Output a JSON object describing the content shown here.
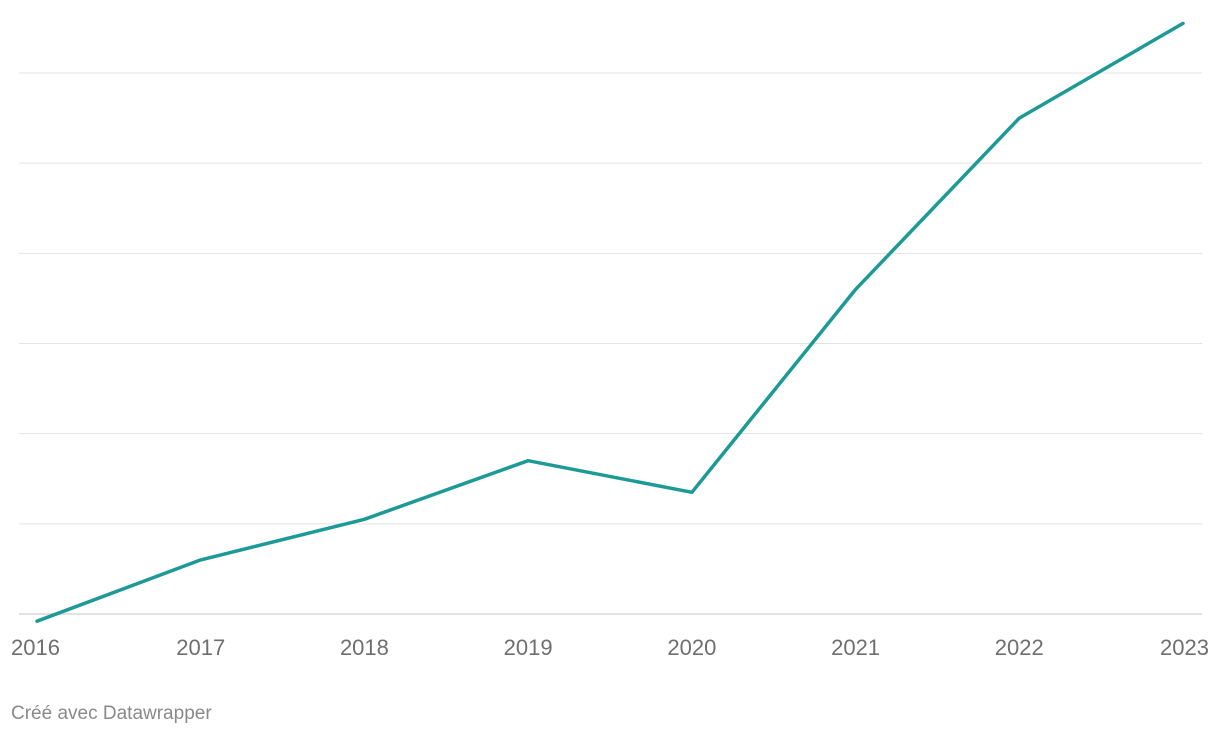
{
  "chart_data": {
    "type": "line",
    "title": "",
    "xlabel": "",
    "ylabel": "",
    "x": [
      "2016",
      "2017",
      "2018",
      "2019",
      "2020",
      "2021",
      "2022",
      "2023"
    ],
    "series": [
      {
        "values": [
          -0.08,
          0.6,
          1.05,
          1.7,
          1.35,
          3.6,
          5.5,
          6.55
        ]
      }
    ],
    "ylim": [
      0,
      6
    ]
  },
  "footer": {
    "credit": "Créé avec Datawrapper"
  },
  "colors": {
    "line": "#1d9a96",
    "grid": "#e3e3e3",
    "baseline": "#d9d9d9",
    "tick_text": "#6f6f6f",
    "footer_text": "#8a8a8a"
  }
}
